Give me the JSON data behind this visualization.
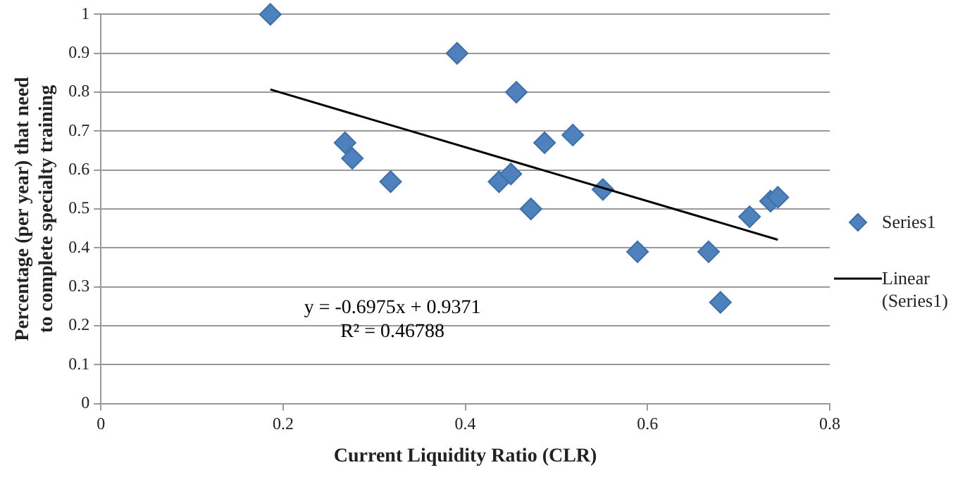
{
  "chart_data": {
    "type": "scatter",
    "xlabel": "Current Liquidity Ratio (CLR)",
    "ylabel": "Percentage (per year) that need to complete specialty training",
    "xlim": [
      0,
      0.8
    ],
    "xticks": [
      0,
      0.2,
      0.4,
      0.6,
      0.8
    ],
    "ylim": [
      0,
      1
    ],
    "yticks": [
      0,
      0.1,
      0.2,
      0.3,
      0.4,
      0.5,
      0.6,
      0.7,
      0.8,
      0.9,
      1
    ],
    "grid": "y",
    "legend": "right",
    "series": [
      {
        "name": "Series1",
        "type": "scatter",
        "marker": "diamond",
        "color": "#4f81bd",
        "x": [
          0.186,
          0.391,
          0.456,
          0.268,
          0.276,
          0.318,
          0.437,
          0.45,
          0.472,
          0.487,
          0.518,
          0.551,
          0.589,
          0.667,
          0.68,
          0.712,
          0.735,
          0.743
        ],
        "values": [
          1.0,
          0.9,
          0.8,
          0.67,
          0.63,
          0.57,
          0.57,
          0.59,
          0.5,
          0.67,
          0.69,
          0.55,
          0.39,
          0.39,
          0.26,
          0.48,
          0.52,
          0.53
        ]
      },
      {
        "name": "Linear (Series1)",
        "type": "line",
        "marker": "none",
        "color": "#000000",
        "x": [
          0.186,
          0.743
        ],
        "values": [
          0.807,
          0.421
        ]
      }
    ],
    "annotations": [
      "y = -0.6975x + 0.9371",
      "R² = 0.46788"
    ]
  }
}
